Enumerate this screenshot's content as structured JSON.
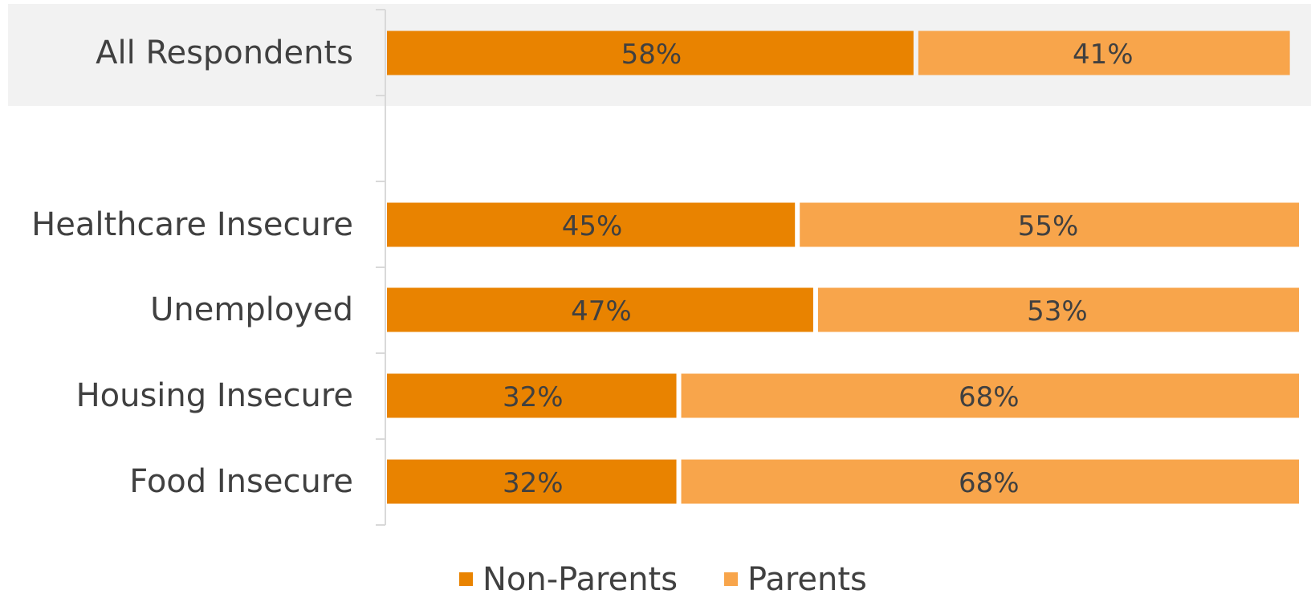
{
  "chart_data": {
    "type": "bar",
    "orientation": "horizontal",
    "stacked": true,
    "categories": [
      "All Respondents",
      "Healthcare Insecure",
      "Unemployed",
      "Housing Insecure",
      "Food Insecure"
    ],
    "series": [
      {
        "name": "Non-Parents",
        "color": "#E98300",
        "values": [
          58,
          45,
          47,
          32,
          32
        ],
        "labels": [
          "58%",
          "45%",
          "47%",
          "32%",
          "32%"
        ]
      },
      {
        "name": "Parents",
        "color": "#F8A54B",
        "values": [
          41,
          55,
          53,
          68,
          68
        ],
        "labels": [
          "41%",
          "55%",
          "53%",
          "68%",
          "68%"
        ]
      }
    ],
    "xlim": [
      0,
      100
    ],
    "highlighted_category": "All Respondents",
    "highlight_color": "#F2F2F2",
    "legend_position": "bottom",
    "grid": false
  }
}
